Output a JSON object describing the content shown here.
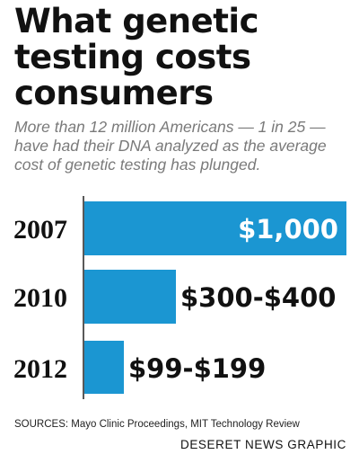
{
  "header": {
    "title_lines": [
      "What genetic",
      "testing costs",
      "consumers"
    ],
    "subtitle_lines": [
      "More than 12 million Americans — 1 in 25 —",
      "have had their DNA analyzed as the average",
      "cost of genetic testing has plunged."
    ]
  },
  "chart_data": {
    "type": "bar",
    "orientation": "horizontal",
    "title": "What genetic testing costs consumers",
    "categories": [
      "2007",
      "2010",
      "2012"
    ],
    "values": [
      1000,
      350,
      149
    ],
    "value_ranges": [
      [
        1000,
        1000
      ],
      [
        300,
        400
      ],
      [
        99,
        199
      ]
    ],
    "data_labels": [
      "$1,000",
      "$300-$400",
      "$99-$199"
    ],
    "xlabel": "",
    "ylabel": "",
    "grid": false,
    "legend": "none",
    "bar_color": "#1b96d2"
  },
  "footer": {
    "sources": "SOURCES: Mayo Clinic Proceedings, MIT Technology Review",
    "credit": "DESERET NEWS GRAPHIC"
  }
}
